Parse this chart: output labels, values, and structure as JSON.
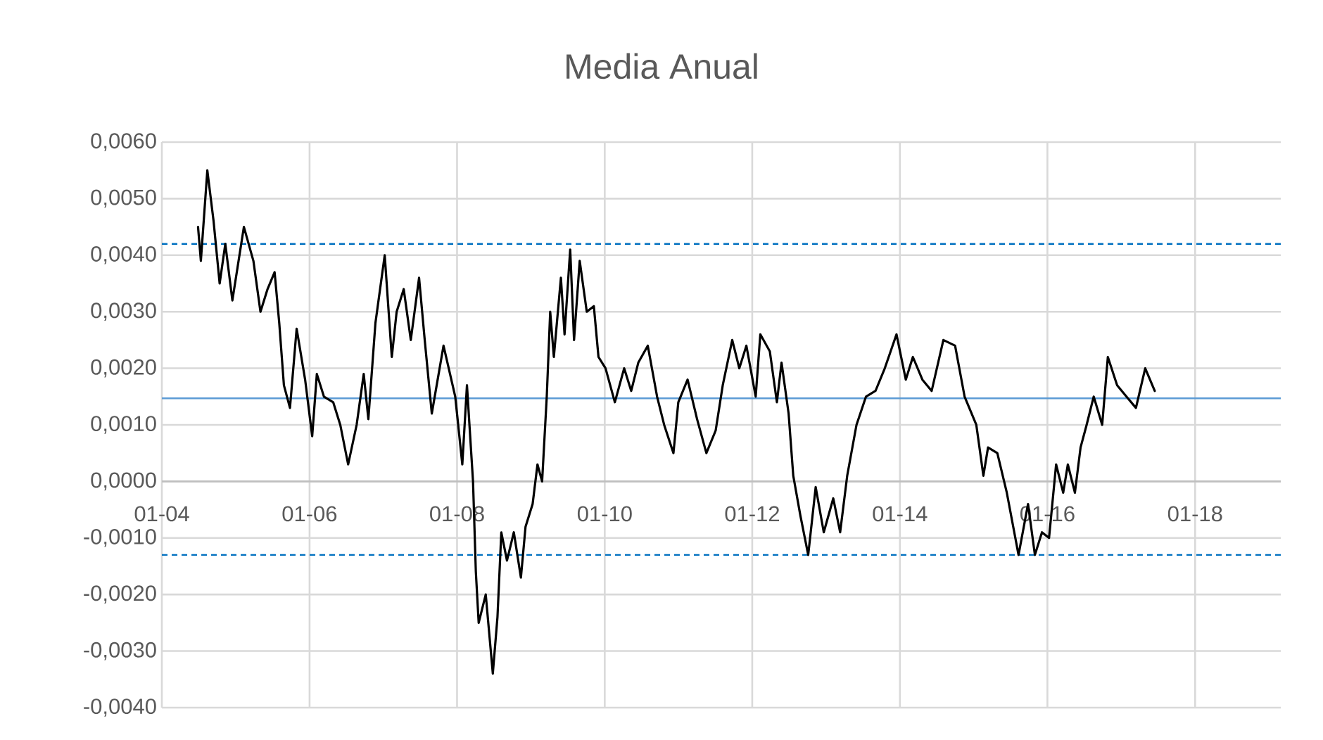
{
  "chart_data": {
    "type": "line",
    "title": "Media Anual",
    "xlim": [
      "2004-01-01",
      "2019-03-01"
    ],
    "xticks": [
      {
        "value": "2004-01-01",
        "label": "01-04"
      },
      {
        "value": "2006-01-01",
        "label": "01-06"
      },
      {
        "value": "2008-01-01",
        "label": "01-08"
      },
      {
        "value": "2010-01-01",
        "label": "01-10"
      },
      {
        "value": "2012-01-01",
        "label": "01-12"
      },
      {
        "value": "2014-01-01",
        "label": "01-14"
      },
      {
        "value": "2016-01-01",
        "label": "01-16"
      },
      {
        "value": "2018-01-01",
        "label": "01-18"
      }
    ],
    "ylim": [
      -0.004,
      0.006
    ],
    "yticks": [
      {
        "value": -0.004,
        "label": "-0,0040"
      },
      {
        "value": -0.003,
        "label": "-0,0030"
      },
      {
        "value": -0.002,
        "label": "-0,0020"
      },
      {
        "value": -0.001,
        "label": "-0,0010"
      },
      {
        "value": 0,
        "label": "0,0000"
      },
      {
        "value": 0.001,
        "label": "0,0010"
      },
      {
        "value": 0.002,
        "label": "0,0020"
      },
      {
        "value": 0.003,
        "label": "0,0030"
      },
      {
        "value": 0.004,
        "label": "0,0040"
      },
      {
        "value": 0.005,
        "label": "0,0050"
      },
      {
        "value": 0.006,
        "label": "0,0060"
      }
    ],
    "grid": true,
    "marker": "none",
    "line_style": "solid",
    "ref_lines": [
      {
        "axis": "y",
        "value": 0.0042,
        "color": "#0070c0",
        "line_style": "dashed"
      },
      {
        "axis": "y",
        "value": 0.00147,
        "color": "#5b9bd5",
        "line_style": "solid"
      },
      {
        "axis": "y",
        "value": -0.0013,
        "color": "#0070c0",
        "line_style": "dashed"
      }
    ],
    "series": [
      {
        "color": "#000000",
        "x": [
          "2004-06-28",
          "2004-07-12",
          "2004-08-13",
          "2004-09-13",
          "2004-10-13",
          "2004-11-10",
          "2004-12-15",
          "2005-02-10",
          "2005-03-29",
          "2005-05-03",
          "2005-06-07",
          "2005-07-12",
          "2005-08-04",
          "2005-08-27",
          "2005-09-26",
          "2005-10-29",
          "2005-12-10",
          "2006-01-14",
          "2006-02-06",
          "2006-03-13",
          "2006-04-28",
          "2006-06-02",
          "2006-07-11",
          "2006-08-22",
          "2006-09-26",
          "2006-10-19",
          "2006-11-23",
          "2007-01-08",
          "2007-02-12",
          "2007-03-08",
          "2007-04-12",
          "2007-05-17",
          "2007-06-27",
          "2007-07-25",
          "2007-08-29",
          "2007-10-26",
          "2007-12-23",
          "2008-01-27",
          "2008-02-19",
          "2008-03-20",
          "2008-04-03",
          "2008-04-17",
          "2008-05-22",
          "2008-06-26",
          "2008-07-19",
          "2008-08-07",
          "2008-09-04",
          "2008-10-08",
          "2008-11-12",
          "2008-12-05",
          "2009-01-09",
          "2009-02-02",
          "2009-02-25",
          "2009-03-20",
          "2009-04-06",
          "2009-04-24",
          "2009-05-29",
          "2009-06-16",
          "2009-07-14",
          "2009-08-02",
          "2009-08-30",
          "2009-10-04",
          "2009-11-08",
          "2009-12-01",
          "2010-01-05",
          "2010-02-20",
          "2010-04-07",
          "2010-05-12",
          "2010-06-16",
          "2010-08-02",
          "2010-09-17",
          "2010-10-22",
          "2010-12-07",
          "2010-12-31",
          "2011-02-15",
          "2011-04-03",
          "2011-05-19",
          "2011-07-04",
          "2011-08-08",
          "2011-09-24",
          "2011-10-29",
          "2011-12-03",
          "2012-01-18",
          "2012-02-10",
          "2012-03-28",
          "2012-05-02",
          "2012-05-25",
          "2012-06-29",
          "2012-07-22",
          "2012-08-26",
          "2012-10-04",
          "2012-11-10",
          "2012-12-20",
          "2013-02-05",
          "2013-03-11",
          "2013-04-15",
          "2013-05-31",
          "2013-07-17",
          "2013-09-02",
          "2013-10-18",
          "2013-12-15",
          "2014-01-30",
          "2014-03-06",
          "2014-04-22",
          "2014-06-07",
          "2014-08-04",
          "2014-10-01",
          "2014-11-17",
          "2015-01-14",
          "2015-02-18",
          "2015-03-13",
          "2015-04-28",
          "2015-06-14",
          "2015-08-11",
          "2015-09-27",
          "2015-10-31",
          "2015-12-05",
          "2016-01-09",
          "2016-02-13",
          "2016-03-19",
          "2016-04-11",
          "2016-05-16",
          "2016-06-13",
          "2016-07-13",
          "2016-08-17",
          "2016-09-28",
          "2016-10-26",
          "2016-12-11",
          "2017-01-26",
          "2017-03-14",
          "2017-04-29",
          "2017-06-15"
        ],
        "values": [
          0.0045,
          0.0039,
          0.0055,
          0.0046,
          0.0035,
          0.0042,
          0.0032,
          0.0045,
          0.0039,
          0.003,
          0.0034,
          0.0037,
          0.0028,
          0.0017,
          0.0013,
          0.0027,
          0.0018,
          0.0008,
          0.0019,
          0.0015,
          0.0014,
          0.001,
          0.0003,
          0.001,
          0.0019,
          0.0011,
          0.0028,
          0.004,
          0.0022,
          0.003,
          0.0034,
          0.0025,
          0.0036,
          0.0025,
          0.0012,
          0.0024,
          0.0015,
          0.0003,
          0.0017,
          0.0,
          -0.0016,
          -0.0025,
          -0.002,
          -0.0034,
          -0.0024,
          -0.0009,
          -0.0014,
          -0.0009,
          -0.0017,
          -0.0008,
          -0.0004,
          0.0003,
          0.0,
          0.0015,
          0.003,
          0.0022,
          0.0036,
          0.0026,
          0.0041,
          0.0025,
          0.0039,
          0.003,
          0.0031,
          0.0022,
          0.002,
          0.0014,
          0.002,
          0.0016,
          0.0021,
          0.0024,
          0.0015,
          0.001,
          0.0005,
          0.0014,
          0.0018,
          0.0011,
          0.0005,
          0.0009,
          0.0017,
          0.0025,
          0.002,
          0.0024,
          0.0015,
          0.0026,
          0.0023,
          0.0014,
          0.0021,
          0.0012,
          0.0001,
          -0.0006,
          -0.0013,
          -0.0001,
          -0.0009,
          -0.0003,
          -0.0009,
          0.0001,
          0.001,
          0.0015,
          0.0016,
          0.002,
          0.0026,
          0.0018,
          0.0022,
          0.0018,
          0.0016,
          0.0025,
          0.0024,
          0.0015,
          0.001,
          0.0001,
          0.0006,
          0.0005,
          -0.0002,
          -0.0013,
          -0.0004,
          -0.0013,
          -0.0009,
          -0.001,
          0.0003,
          -0.0002,
          0.0003,
          -0.0002,
          0.0006,
          0.001,
          0.0015,
          0.001,
          0.0022,
          0.0017,
          0.0015,
          0.0013,
          0.002,
          0.0016
        ]
      }
    ]
  }
}
